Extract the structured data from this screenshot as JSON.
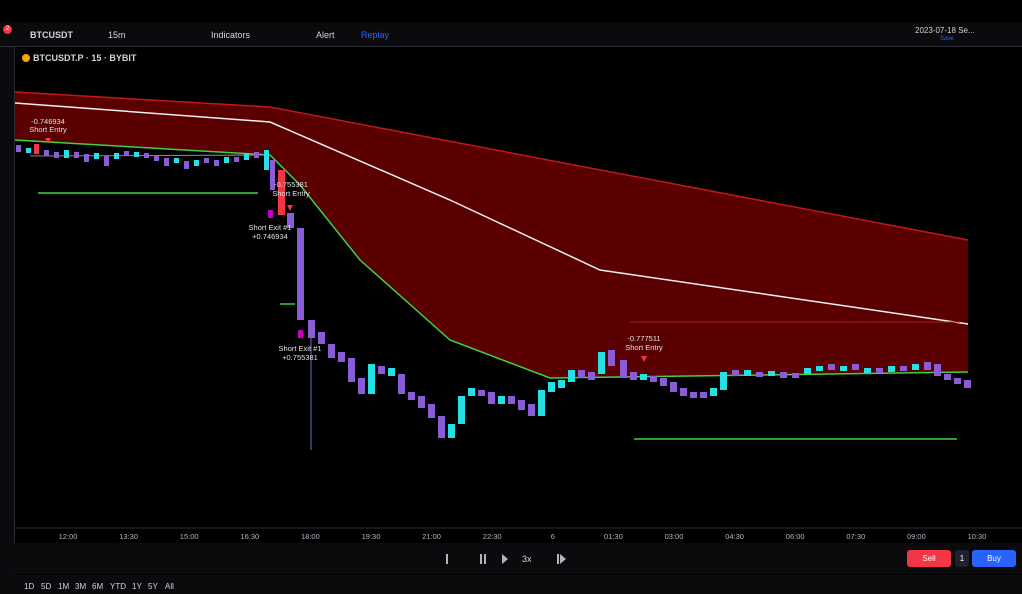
{
  "toolbar": {
    "badge": "2",
    "symbol": "BTCUSDT",
    "interval": "15m",
    "indicators": "Indicators",
    "alert": "Alert",
    "replay": "Replay",
    "layout": "2023-07-18 Se...",
    "layout_status": "Save"
  },
  "legend": {
    "symbol": "BTCUSDT.P · 15 · BYBIT"
  },
  "annotations": [
    {
      "value": "-0.746934",
      "label": "Short Entry"
    },
    {
      "value": "-0.755381",
      "label": "Short Entry"
    },
    {
      "label": "Short Exit #1",
      "value": "+0.746934"
    },
    {
      "label": "Short Exit #1",
      "value": "+0.755381"
    },
    {
      "value": "-0.777511",
      "label": "Short Entry"
    }
  ],
  "time_axis": [
    "12:00",
    "13:30",
    "15:00",
    "16:30",
    "18:00",
    "19:30",
    "21:00",
    "22:30",
    "6",
    "01:30",
    "03:00",
    "04:30",
    "06:00",
    "07:30",
    "09:00",
    "10:30"
  ],
  "replay_bar": {
    "speed": "3x"
  },
  "trade": {
    "sell": "Sell",
    "quantity": "1",
    "buy": "Buy"
  },
  "ranges": [
    "1D",
    "5D",
    "1M",
    "3M",
    "6M",
    "YTD",
    "1Y",
    "5Y",
    "All"
  ]
}
